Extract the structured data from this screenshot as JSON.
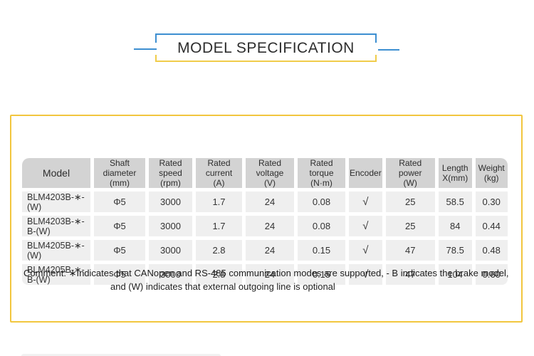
{
  "page": {
    "title": "MODEL SPECIFICATION"
  },
  "colors": {
    "accent_blue": "#3d8fd1",
    "accent_yellow": "#f0cc4a",
    "box_border": "#f2c63e",
    "header_bg": "#d3d3d3",
    "cell_bg": "#efefef",
    "text": "#333333"
  },
  "table": {
    "columns": [
      {
        "label": "Model",
        "sub": ""
      },
      {
        "label": "Shaft diameter",
        "sub": "(mm)"
      },
      {
        "label": "Rated speed",
        "sub": "(rpm)"
      },
      {
        "label": "Rated current",
        "sub": "(A)"
      },
      {
        "label": "Rated voltage",
        "sub": "(V)"
      },
      {
        "label": "Rated torque",
        "sub": "(N·m)"
      },
      {
        "label": "Encoder",
        "sub": ""
      },
      {
        "label": "Rated power",
        "sub": "(W)"
      },
      {
        "label": "Length",
        "sub": "X(mm)"
      },
      {
        "label": "Weight",
        "sub": "(kg)"
      }
    ],
    "rows": [
      [
        "BLM4203B-∗-(W)",
        "Φ5",
        "3000",
        "1.7",
        "24",
        "0.08",
        "√",
        "25",
        "58.5",
        "0.30"
      ],
      [
        "BLM4203B-∗-B-(W)",
        "Φ5",
        "3000",
        "1.7",
        "24",
        "0.08",
        "√",
        "25",
        "84",
        "0.44"
      ],
      [
        "BLM4205B-∗-(W)",
        "Φ5",
        "3000",
        "2.8",
        "24",
        "0.15",
        "√",
        "47",
        "78.5",
        "0.48"
      ],
      [
        "BLM4205B-∗-B-(W)",
        "Φ5",
        "3000",
        "2.8",
        "24",
        "0.15",
        "√",
        "47",
        "104",
        "0.60"
      ]
    ]
  },
  "comment": {
    "line1": "Comment: ∗Indicates that CANopen and RS-485 communication modes are supported, - B indicates the brake model,",
    "line2": "and (W) indicates that external outgoing line is optional"
  }
}
